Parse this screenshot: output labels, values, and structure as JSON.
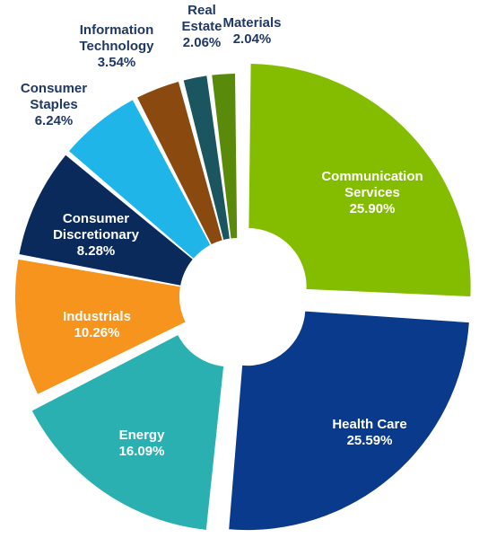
{
  "chart_data": {
    "type": "donut",
    "categories": [
      "Communication Services",
      "Health Care",
      "Energy",
      "Industrials",
      "Consumer Discretionary",
      "Consumer Staples",
      "Information Technology",
      "Real Estate",
      "Materials"
    ],
    "values": [
      25.9,
      25.59,
      16.09,
      10.26,
      8.28,
      6.24,
      3.54,
      2.06,
      2.04
    ],
    "value_labels": [
      "25.90%",
      "25.59%",
      "16.09%",
      "10.26%",
      "8.28%",
      "6.24%",
      "3.54%",
      "2.06%",
      "2.04%"
    ],
    "colors": [
      "#84bd00",
      "#0a3a8c",
      "#2ab0b0",
      "#f7941d",
      "#0b2a5c",
      "#1fb5e9",
      "#8a4a0f",
      "#1a5560",
      "#5a8a0a"
    ]
  }
}
